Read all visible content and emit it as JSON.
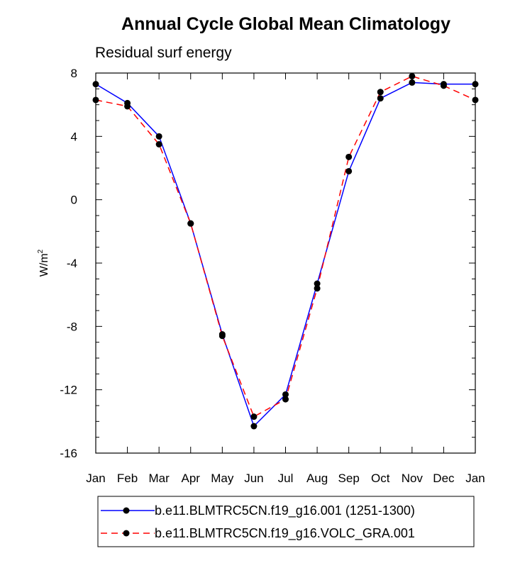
{
  "chart_data": {
    "type": "line",
    "title": "Annual Cycle Global Mean Climatology",
    "subtitle": "Residual surf energy",
    "xlabel": "",
    "ylabel": "W/m",
    "ylabel_superscript": "2",
    "categories": [
      "Jan",
      "Feb",
      "Mar",
      "Apr",
      "May",
      "Jun",
      "Jul",
      "Aug",
      "Sep",
      "Oct",
      "Nov",
      "Dec",
      "Jan"
    ],
    "ylim": [
      -16,
      8
    ],
    "yticks": [
      8,
      4,
      0,
      -4,
      -8,
      -12,
      -16
    ],
    "ytick_labels": [
      "8",
      "4",
      "0",
      "-4",
      "-8",
      "-12",
      "-16"
    ],
    "grid": false,
    "legend_position": "bottom",
    "series": [
      {
        "name": "b.e11.BLMTRC5CN.f19_g16.001 (1251-1300)",
        "color": "#0000ff",
        "style": "solid",
        "marker": "circle",
        "values": [
          7.3,
          6.1,
          4.0,
          -1.5,
          -8.5,
          -14.3,
          -12.3,
          -5.3,
          1.8,
          6.4,
          7.4,
          7.3,
          7.3
        ]
      },
      {
        "name": "b.e11.BLMTRC5CN.f19_g16.VOLC_GRA.001",
        "color": "#ff0000",
        "style": "dashed",
        "marker": "circle",
        "values": [
          6.3,
          5.9,
          3.5,
          -1.5,
          -8.6,
          -13.7,
          -12.6,
          -5.6,
          2.7,
          6.8,
          7.8,
          7.2,
          6.3
        ]
      }
    ]
  }
}
